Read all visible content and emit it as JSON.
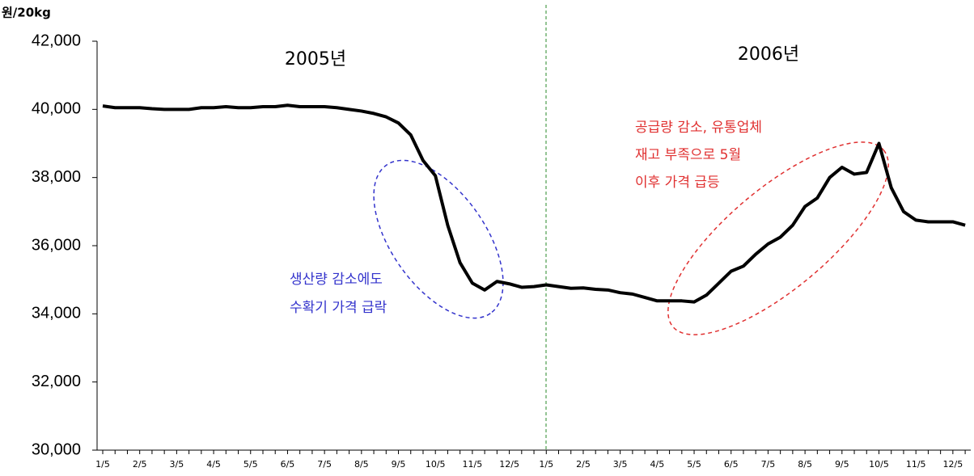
{
  "chart_data": {
    "type": "line",
    "y_unit": "원/20kg",
    "categories": [
      "1/5",
      null,
      null,
      "2/5",
      null,
      null,
      "3/5",
      null,
      null,
      "4/5",
      null,
      null,
      "5/5",
      null,
      null,
      "6/5",
      null,
      null,
      "7/5",
      null,
      null,
      "8/5",
      null,
      null,
      "9/5",
      null,
      null,
      "10/5",
      null,
      null,
      "11/5",
      null,
      null,
      "12/5",
      null,
      null,
      "1/5",
      null,
      null,
      "2/5",
      null,
      null,
      "3/5",
      null,
      null,
      "4/5",
      null,
      null,
      "5/5",
      null,
      null,
      "6/5",
      null,
      null,
      "7/5",
      null,
      null,
      "8/5",
      null,
      null,
      "9/5",
      null,
      null,
      "10/5",
      null,
      null,
      "11/5",
      null,
      null,
      "12/5",
      null
    ],
    "values": [
      40100,
      40050,
      40050,
      40050,
      40020,
      40000,
      40000,
      40000,
      40050,
      40050,
      40080,
      40050,
      40050,
      40080,
      40080,
      40120,
      40080,
      40080,
      40080,
      40050,
      40000,
      39950,
      39880,
      39780,
      39600,
      39250,
      38500,
      38050,
      36600,
      35500,
      34900,
      34700,
      34950,
      34880,
      34780,
      34800,
      34850,
      34800,
      34750,
      34760,
      34720,
      34700,
      34620,
      34580,
      34480,
      34380,
      34380,
      34380,
      34350,
      34550,
      34900,
      35250,
      35400,
      35750,
      36050,
      36250,
      36600,
      37150,
      37400,
      38000,
      38300,
      38100,
      38150,
      39000,
      37700,
      37000,
      36750,
      36700,
      36700,
      36700,
      36600
    ],
    "color": "#000000",
    "ylim": [
      30000,
      42000
    ],
    "yticks": [
      {
        "value": 30000,
        "label": "30,000"
      },
      {
        "value": 32000,
        "label": "32,000"
      },
      {
        "value": 34000,
        "label": "34,000"
      },
      {
        "value": 36000,
        "label": "36,000"
      },
      {
        "value": 38000,
        "label": "38,000"
      },
      {
        "value": 40000,
        "label": "40,000"
      },
      {
        "value": 42000,
        "label": "42,000"
      }
    ],
    "year_labels": [
      "2005년",
      "2006년"
    ],
    "annotations": [
      {
        "lines": [
          "생산량 감소에도",
          "수확기 가격 급락"
        ],
        "color": "#3333cc"
      },
      {
        "lines": [
          "공급량 감소, 유통업체",
          "재고 부족으로 5월",
          "이후 가격 급등"
        ],
        "color": "#e03030"
      }
    ]
  }
}
